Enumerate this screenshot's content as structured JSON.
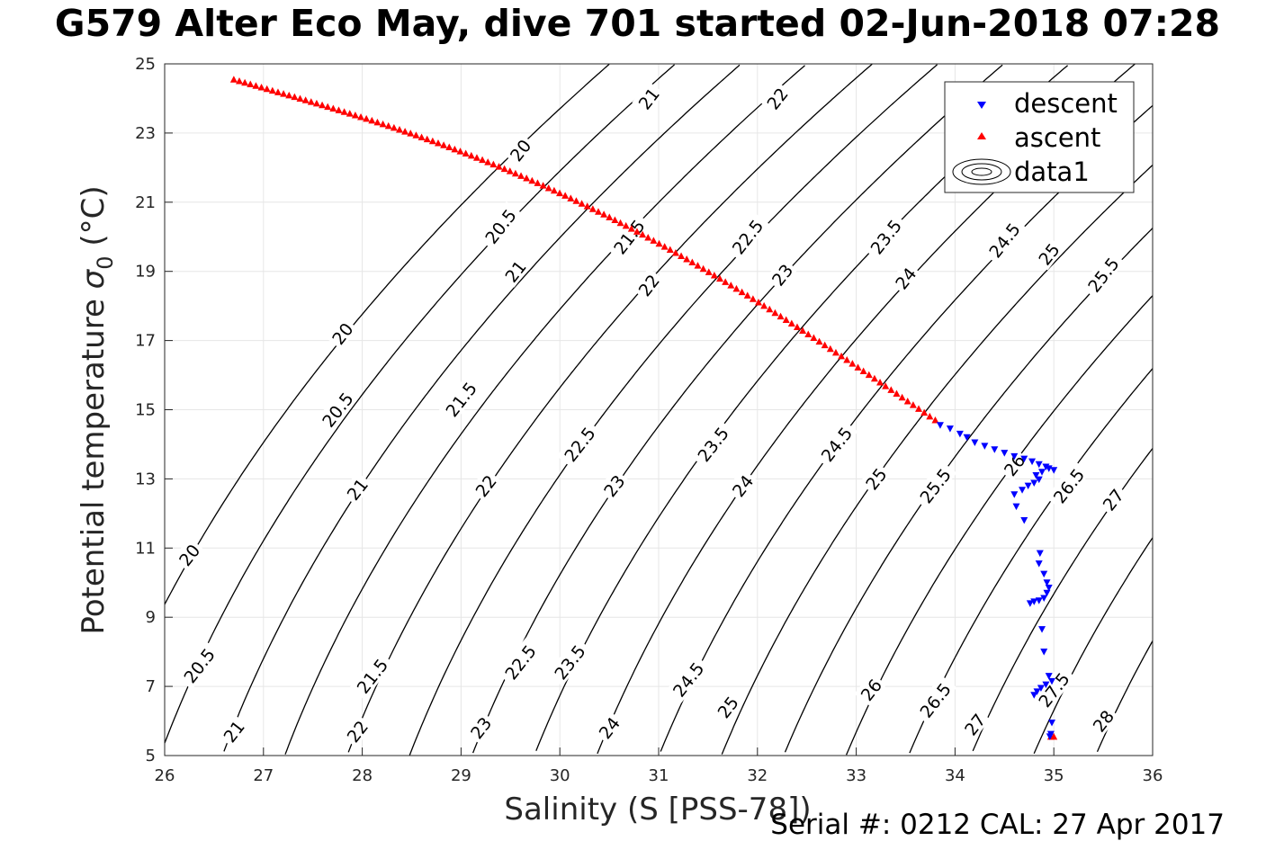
{
  "chart_data": {
    "type": "scatter",
    "title": "G579 Alter Eco May, dive 701 started 02-Jun-2018 07:28",
    "xlabel": "Salinity (S [PSS-78])",
    "ylabel_main": "Potential temperature ",
    "ylabel_symbol": "σ",
    "ylabel_sub": "0",
    "ylabel_unit": " (°C)",
    "xlim": [
      26,
      36
    ],
    "ylim": [
      5,
      25
    ],
    "xticks": [
      26,
      27,
      28,
      29,
      30,
      31,
      32,
      33,
      34,
      35,
      36
    ],
    "yticks": [
      5,
      7,
      9,
      11,
      13,
      15,
      17,
      19,
      21,
      23,
      25
    ],
    "grid": true,
    "legend_position": "top-right",
    "series": [
      {
        "name": "descent",
        "marker": "triangle-down",
        "color": "#0000ff",
        "points": [
          [
            33.85,
            14.55
          ],
          [
            33.95,
            14.45
          ],
          [
            34.05,
            14.3
          ],
          [
            34.12,
            14.2
          ],
          [
            34.2,
            14.05
          ],
          [
            34.3,
            13.95
          ],
          [
            34.4,
            13.85
          ],
          [
            34.5,
            13.75
          ],
          [
            34.6,
            13.65
          ],
          [
            34.7,
            13.58
          ],
          [
            34.78,
            13.5
          ],
          [
            34.85,
            13.42
          ],
          [
            34.92,
            13.35
          ],
          [
            35.0,
            13.25
          ],
          [
            34.95,
            13.3
          ],
          [
            34.88,
            13.2
          ],
          [
            34.82,
            13.1
          ],
          [
            34.85,
            12.98
          ],
          [
            34.8,
            12.88
          ],
          [
            34.74,
            12.8
          ],
          [
            34.68,
            12.68
          ],
          [
            34.6,
            12.55
          ],
          [
            34.62,
            12.2
          ],
          [
            34.7,
            11.8
          ],
          [
            34.86,
            10.85
          ],
          [
            34.85,
            10.55
          ],
          [
            34.9,
            10.25
          ],
          [
            34.93,
            10.0
          ],
          [
            34.95,
            9.85
          ],
          [
            34.93,
            9.7
          ],
          [
            34.9,
            9.55
          ],
          [
            34.85,
            9.48
          ],
          [
            34.8,
            9.45
          ],
          [
            34.76,
            9.4
          ],
          [
            34.88,
            8.65
          ],
          [
            34.9,
            8.0
          ],
          [
            34.95,
            7.3
          ],
          [
            34.98,
            7.15
          ],
          [
            34.92,
            7.05
          ],
          [
            34.87,
            6.95
          ],
          [
            34.83,
            6.85
          ],
          [
            34.8,
            6.75
          ],
          [
            34.98,
            5.95
          ],
          [
            34.97,
            5.62
          ],
          [
            34.96,
            5.55
          ]
        ]
      },
      {
        "name": "ascent",
        "marker": "triangle-up",
        "color": "#ff0000",
        "start": [
          26.7,
          24.55
        ],
        "end": [
          33.8,
          14.7
        ],
        "count": 128,
        "extra_points": [
          [
            34.97,
            5.55
          ],
          [
            35.0,
            5.55
          ]
        ]
      },
      {
        "name": "data1",
        "marker": "contour",
        "color": "#000000"
      }
    ],
    "contours": {
      "levels": [
        20,
        20.5,
        21,
        21.5,
        22,
        22.5,
        23,
        23.5,
        24,
        24.5,
        25,
        25.5,
        26,
        26.5,
        27,
        27.5,
        28
      ],
      "labels": [
        {
          "s": 26.25,
          "t": 10.8,
          "text": "20"
        },
        {
          "s": 26.35,
          "t": 7.6,
          "text": "20.5"
        },
        {
          "s": 26.7,
          "t": 5.7,
          "text": "21"
        },
        {
          "s": 27.8,
          "t": 17.2,
          "text": "20"
        },
        {
          "s": 27.75,
          "t": 15.0,
          "text": "20.5"
        },
        {
          "s": 27.95,
          "t": 12.7,
          "text": "21"
        },
        {
          "s": 28.1,
          "t": 7.3,
          "text": "21.5"
        },
        {
          "s": 27.95,
          "t": 5.7,
          "text": "22"
        },
        {
          "s": 29.6,
          "t": 22.5,
          "text": "20"
        },
        {
          "s": 29.4,
          "t": 20.3,
          "text": "20.5"
        },
        {
          "s": 29.55,
          "t": 19.0,
          "text": "21"
        },
        {
          "s": 29.0,
          "t": 15.3,
          "text": "21.5"
        },
        {
          "s": 29.25,
          "t": 12.8,
          "text": "22"
        },
        {
          "s": 29.6,
          "t": 7.7,
          "text": "22.5"
        },
        {
          "s": 29.2,
          "t": 5.8,
          "text": "23"
        },
        {
          "s": 30.9,
          "t": 24.0,
          "text": "21"
        },
        {
          "s": 30.7,
          "t": 20.0,
          "text": "21.5"
        },
        {
          "s": 30.9,
          "t": 18.6,
          "text": "22"
        },
        {
          "s": 30.2,
          "t": 14.0,
          "text": "22.5"
        },
        {
          "s": 30.55,
          "t": 12.8,
          "text": "23"
        },
        {
          "s": 30.1,
          "t": 7.7,
          "text": "23.5"
        },
        {
          "s": 30.5,
          "t": 5.8,
          "text": "24"
        },
        {
          "s": 32.2,
          "t": 24.0,
          "text": "22"
        },
        {
          "s": 31.9,
          "t": 20.0,
          "text": "22.5"
        },
        {
          "s": 32.25,
          "t": 18.9,
          "text": "23"
        },
        {
          "s": 31.55,
          "t": 14.0,
          "text": "23.5"
        },
        {
          "s": 31.85,
          "t": 12.8,
          "text": "24"
        },
        {
          "s": 31.3,
          "t": 7.2,
          "text": "24.5"
        },
        {
          "s": 31.7,
          "t": 6.4,
          "text": "25"
        },
        {
          "s": 33.3,
          "t": 20.0,
          "text": "23.5"
        },
        {
          "s": 33.5,
          "t": 18.8,
          "text": "24"
        },
        {
          "s": 32.8,
          "t": 14.0,
          "text": "24.5"
        },
        {
          "s": 33.2,
          "t": 13.0,
          "text": "25"
        },
        {
          "s": 34.5,
          "t": 19.9,
          "text": "24.5"
        },
        {
          "s": 34.95,
          "t": 19.5,
          "text": "25"
        },
        {
          "s": 35.5,
          "t": 18.9,
          "text": "25.5"
        },
        {
          "s": 33.8,
          "t": 12.8,
          "text": "25.5"
        },
        {
          "s": 34.6,
          "t": 13.4,
          "text": "26"
        },
        {
          "s": 35.15,
          "t": 12.8,
          "text": "26.5"
        },
        {
          "s": 35.6,
          "t": 12.4,
          "text": "27"
        },
        {
          "s": 33.15,
          "t": 6.9,
          "text": "26"
        },
        {
          "s": 33.8,
          "t": 6.6,
          "text": "26.5"
        },
        {
          "s": 34.2,
          "t": 5.9,
          "text": "27"
        },
        {
          "s": 35.0,
          "t": 6.9,
          "text": "27.5"
        },
        {
          "s": 35.5,
          "t": 6.0,
          "text": "28"
        }
      ]
    },
    "footer": "Serial #: 0212  CAL: 27 Apr 2017"
  }
}
